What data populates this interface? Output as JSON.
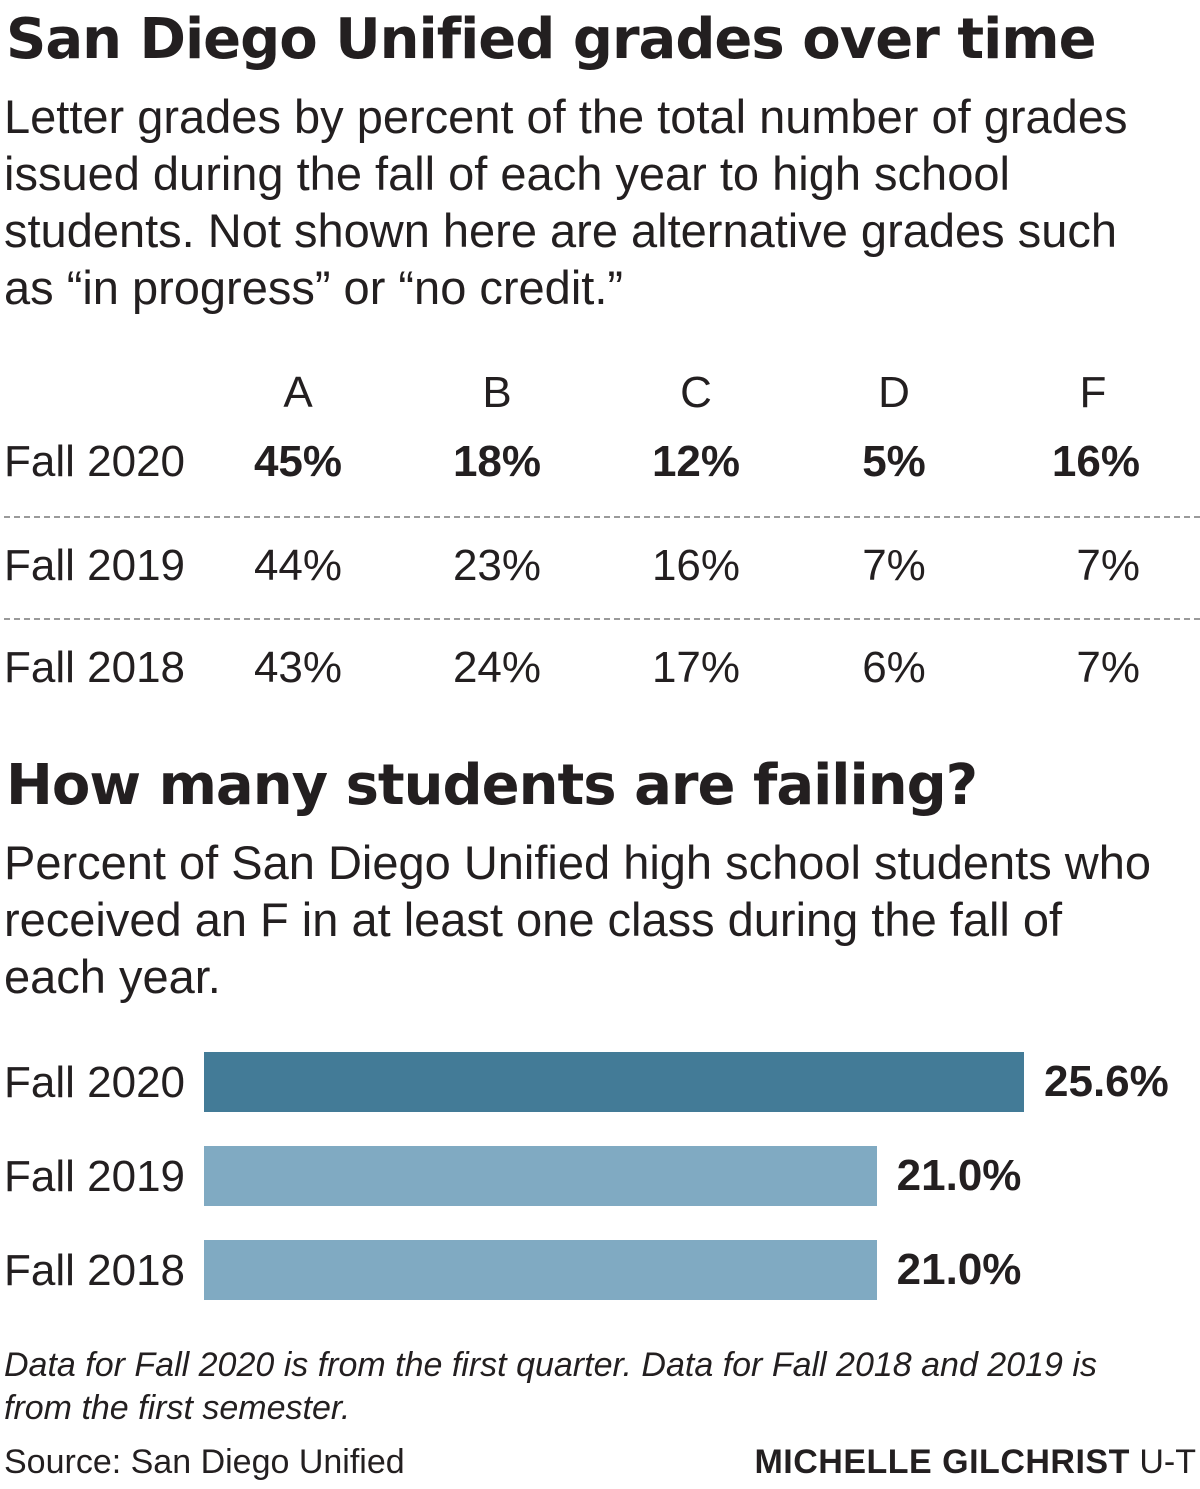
{
  "header": {
    "title": "San Diego Unified grades over time",
    "subtitle": "Letter grades by percent of the total number of grades issued during the fall of each year to high school students. Not shown here are alternative grades such as “in progress” or “no credit.”"
  },
  "failing": {
    "title": "How many students are failing?",
    "subtitle": "Percent of San Diego Unified high school students who received an F in at least one class during the fall of each year."
  },
  "footer": {
    "note": "Data for Fall 2020 is from the first quarter. Data for Fall 2018 and 2019 is from the first semester.",
    "source": "Source: San Diego Unified",
    "credit_name": "MICHELLE GILCHRIST",
    "credit_org": "U-T"
  },
  "colors": {
    "text": "#231f20",
    "highlight_bar": "#437b97",
    "other_bar": "#80aac2",
    "separator": "#9a9a9a"
  },
  "chart_data": [
    {
      "type": "table",
      "columns": [
        "A",
        "B",
        "C",
        "D",
        "F"
      ],
      "rows": [
        {
          "label": "Fall 2020",
          "values": [
            "45%",
            "18%",
            "12%",
            "5%",
            "16%"
          ],
          "highlight": true
        },
        {
          "label": "Fall 2019",
          "values": [
            "44%",
            "23%",
            "16%",
            "7%",
            "7%"
          ],
          "highlight": false
        },
        {
          "label": "Fall 2018",
          "values": [
            "43%",
            "24%",
            "17%",
            "6%",
            "7%"
          ],
          "highlight": false
        }
      ]
    },
    {
      "type": "bar",
      "orientation": "horizontal",
      "categories": [
        "Fall 2020",
        "Fall 2019",
        "Fall 2018"
      ],
      "values": [
        25.6,
        21.0,
        21.0
      ],
      "value_labels": [
        "25.6%",
        "21.0%",
        "21.0%"
      ],
      "highlight_index": 0
    }
  ]
}
